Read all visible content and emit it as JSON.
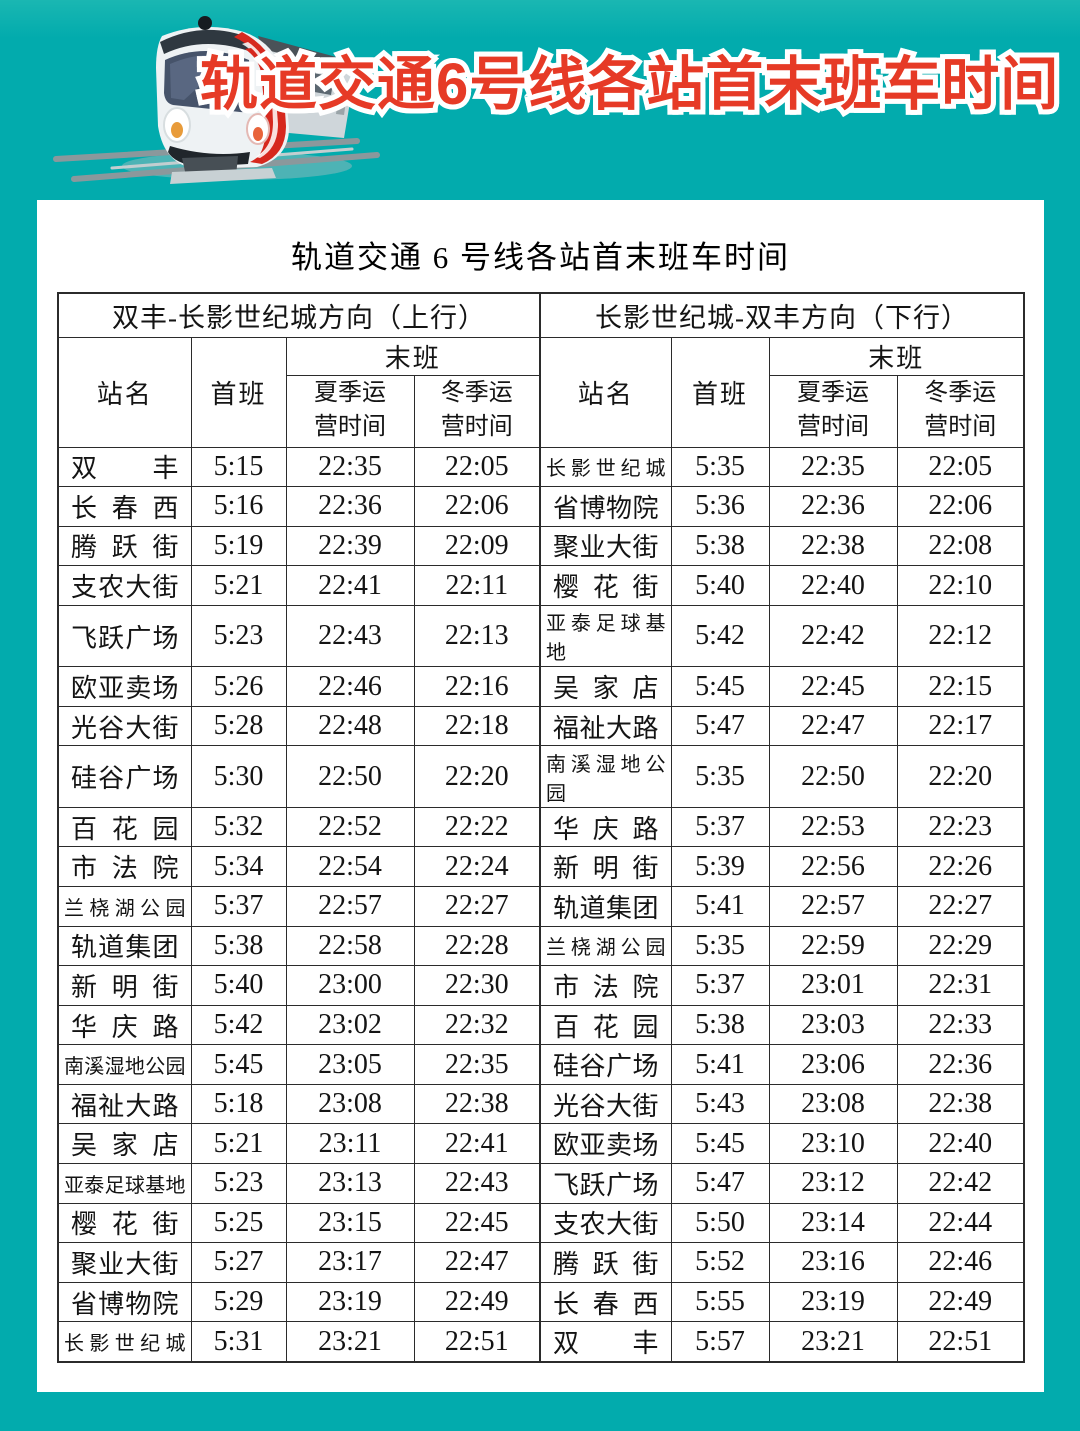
{
  "page": {
    "banner_title": "轨道交通6号线各站首末班车时间",
    "card_title": "轨道交通 6 号线各站首末班车时间"
  },
  "colors": {
    "background_teal": "#02abad",
    "banner_red": "#e63a26",
    "banner_outline": "#ffffff",
    "card_background": "#ffffff",
    "table_border": "#2b2b2b",
    "text": "#141414",
    "train_red_stripe": "#d6281e"
  },
  "icons": {
    "train": "train-icon"
  },
  "table": {
    "directions": [
      "双丰-长影世纪城方向（上行）",
      "长影世纪城-双丰方向（下行）"
    ],
    "columns": {
      "station": "站名",
      "first": "首班",
      "last": "末班",
      "summer": "夏季运\n营时间",
      "winter": "冬季运\n营时间"
    },
    "up": {
      "rows": [
        {
          "station": "双丰",
          "first": "5:15",
          "summer": "22:35",
          "winter": "22:05"
        },
        {
          "station": "长春西",
          "first": "5:16",
          "summer": "22:36",
          "winter": "22:06"
        },
        {
          "station": "腾跃街",
          "first": "5:19",
          "summer": "22:39",
          "winter": "22:09"
        },
        {
          "station": "支农大街",
          "first": "5:21",
          "summer": "22:41",
          "winter": "22:11"
        },
        {
          "station": "飞跃广场",
          "first": "5:23",
          "summer": "22:43",
          "winter": "22:13"
        },
        {
          "station": "欧亚卖场",
          "first": "5:26",
          "summer": "22:46",
          "winter": "22:16"
        },
        {
          "station": "光谷大街",
          "first": "5:28",
          "summer": "22:48",
          "winter": "22:18"
        },
        {
          "station": "硅谷广场",
          "first": "5:30",
          "summer": "22:50",
          "winter": "22:20"
        },
        {
          "station": "百花园",
          "first": "5:32",
          "summer": "22:52",
          "winter": "22:22"
        },
        {
          "station": "市法院",
          "first": "5:34",
          "summer": "22:54",
          "winter": "22:24"
        },
        {
          "station": "兰桡湖公园",
          "first": "5:37",
          "summer": "22:57",
          "winter": "22:27"
        },
        {
          "station": "轨道集团",
          "first": "5:38",
          "summer": "22:58",
          "winter": "22:28"
        },
        {
          "station": "新明街",
          "first": "5:40",
          "summer": "23:00",
          "winter": "22:30"
        },
        {
          "station": "华庆路",
          "first": "5:42",
          "summer": "23:02",
          "winter": "22:32"
        },
        {
          "station": "南溪湿地公园",
          "first": "5:45",
          "summer": "23:05",
          "winter": "22:35"
        },
        {
          "station": "福祉大路",
          "first": "5:18",
          "summer": "23:08",
          "winter": "22:38"
        },
        {
          "station": "吴家店",
          "first": "5:21",
          "summer": "23:11",
          "winter": "22:41"
        },
        {
          "station": "亚泰足球基地",
          "first": "5:23",
          "summer": "23:13",
          "winter": "22:43"
        },
        {
          "station": "樱花街",
          "first": "5:25",
          "summer": "23:15",
          "winter": "22:45"
        },
        {
          "station": "聚业大街",
          "first": "5:27",
          "summer": "23:17",
          "winter": "22:47"
        },
        {
          "station": "省博物院",
          "first": "5:29",
          "summer": "23:19",
          "winter": "22:49"
        },
        {
          "station": "长影世纪城",
          "first": "5:31",
          "summer": "23:21",
          "winter": "22:51"
        }
      ]
    },
    "down": {
      "rows": [
        {
          "station": "长影世纪城",
          "first": "5:35",
          "summer": "22:35",
          "winter": "22:05"
        },
        {
          "station": "省博物院",
          "first": "5:36",
          "summer": "22:36",
          "winter": "22:06"
        },
        {
          "station": "聚业大街",
          "first": "5:38",
          "summer": "22:38",
          "winter": "22:08"
        },
        {
          "station": "樱花街",
          "first": "5:40",
          "summer": "22:40",
          "winter": "22:10"
        },
        {
          "station": "亚泰足球基地",
          "first": "5:42",
          "summer": "22:42",
          "winter": "22:12"
        },
        {
          "station": "吴家店",
          "first": "5:45",
          "summer": "22:45",
          "winter": "22:15"
        },
        {
          "station": "福祉大路",
          "first": "5:47",
          "summer": "22:47",
          "winter": "22:17"
        },
        {
          "station": "南溪湿地公园",
          "first": "5:35",
          "summer": "22:50",
          "winter": "22:20"
        },
        {
          "station": "华庆路",
          "first": "5:37",
          "summer": "22:53",
          "winter": "22:23"
        },
        {
          "station": "新明街",
          "first": "5:39",
          "summer": "22:56",
          "winter": "22:26"
        },
        {
          "station": "轨道集团",
          "first": "5:41",
          "summer": "22:57",
          "winter": "22:27"
        },
        {
          "station": "兰桡湖公园",
          "first": "5:35",
          "summer": "22:59",
          "winter": "22:29"
        },
        {
          "station": "市法院",
          "first": "5:37",
          "summer": "23:01",
          "winter": "22:31"
        },
        {
          "station": "百花园",
          "first": "5:38",
          "summer": "23:03",
          "winter": "22:33"
        },
        {
          "station": "硅谷广场",
          "first": "5:41",
          "summer": "23:06",
          "winter": "22:36"
        },
        {
          "station": "光谷大街",
          "first": "5:43",
          "summer": "23:08",
          "winter": "22:38"
        },
        {
          "station": "欧亚卖场",
          "first": "5:45",
          "summer": "23:10",
          "winter": "22:40"
        },
        {
          "station": "飞跃广场",
          "first": "5:47",
          "summer": "23:12",
          "winter": "22:42"
        },
        {
          "station": "支农大街",
          "first": "5:50",
          "summer": "23:14",
          "winter": "22:44"
        },
        {
          "station": "腾跃街",
          "first": "5:52",
          "summer": "23:16",
          "winter": "22:46"
        },
        {
          "station": "长春西",
          "first": "5:55",
          "summer": "23:19",
          "winter": "22:49"
        },
        {
          "station": "双丰",
          "first": "5:57",
          "summer": "23:21",
          "winter": "22:51"
        }
      ]
    }
  }
}
